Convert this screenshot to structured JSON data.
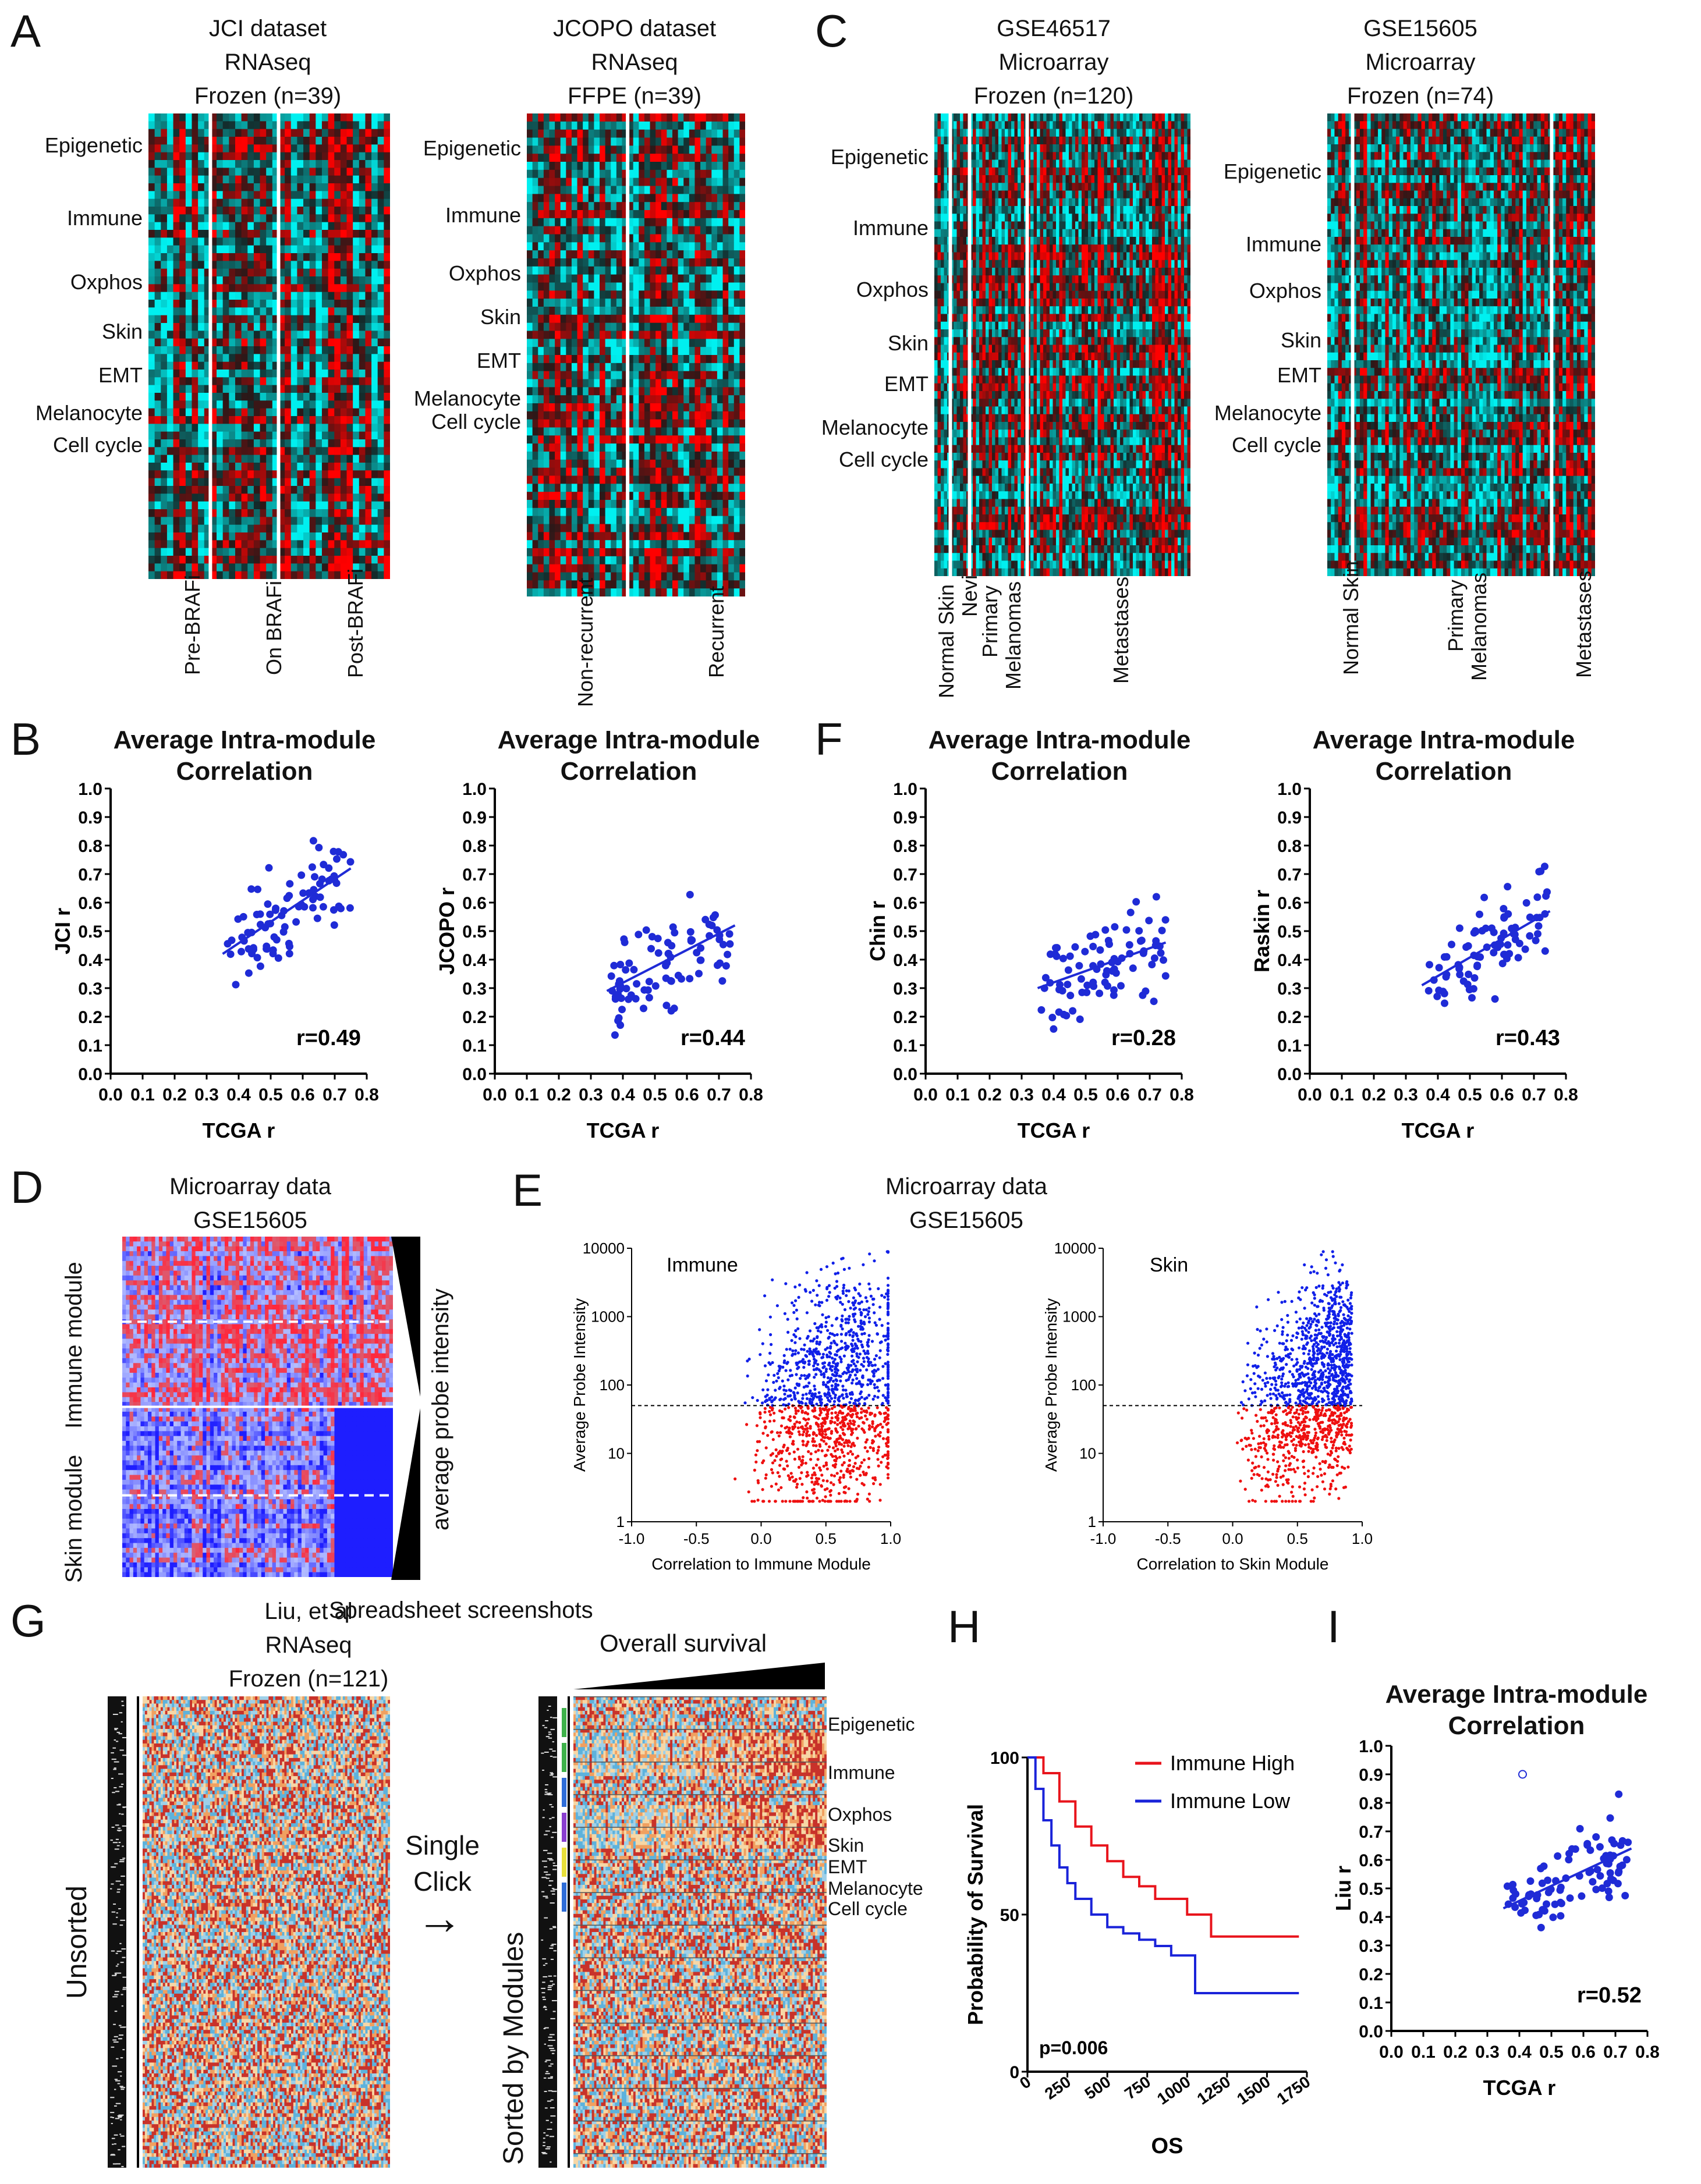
{
  "panels": {
    "A": "A",
    "B": "B",
    "C": "C",
    "D": "D",
    "E": "E",
    "F": "F",
    "G": "G",
    "H": "H",
    "I": "I"
  },
  "panelA": {
    "heatmaps": [
      {
        "title": [
          "JCI dataset",
          "RNAseq",
          "Frozen (n=39)"
        ],
        "modules": [
          "Epigenetic",
          "Immune",
          "Oxphos",
          "Skin",
          "EMT",
          "Melanocyte",
          "Cell cycle"
        ],
        "groups": [
          "Pre-BRAFi",
          "On BRAFi",
          "Post-BRAFi"
        ]
      },
      {
        "title": [
          "JCOPO dataset",
          "RNAseq",
          "FFPE (n=39)"
        ],
        "modules": [
          "Epigenetic",
          "Immune",
          "Oxphos",
          "Skin",
          "EMT",
          "Melanocyte",
          "Cell cycle"
        ],
        "groups": [
          "Non-recurrent",
          "Recurrent"
        ]
      }
    ]
  },
  "panelC": {
    "heatmaps": [
      {
        "title": [
          "GSE46517",
          "Microarray",
          "Frozen (n=120)"
        ],
        "modules": [
          "Epigenetic",
          "Immune",
          "Oxphos",
          "Skin",
          "EMT",
          "Melanocyte",
          "Cell cycle"
        ],
        "groups": [
          "Normal Skin",
          "Nevi",
          "Primary",
          "Melanomas",
          "Metastases"
        ]
      },
      {
        "title": [
          "GSE15605",
          "Microarray",
          "Frozen (n=74)"
        ],
        "modules": [
          "Epigenetic",
          "Immune",
          "Oxphos",
          "Skin",
          "EMT",
          "Melanocyte",
          "Cell cycle"
        ],
        "groups": [
          "Normal Skin",
          "Primary",
          "Melanomas",
          "Metastases"
        ]
      }
    ]
  },
  "panelD": {
    "title": [
      "Microarray data",
      "GSE15605"
    ],
    "modules": [
      "Immune module",
      "Skin module"
    ],
    "side_label": "average probe intensity"
  },
  "panelE": {
    "title": [
      "Microarray data",
      "GSE15605"
    ],
    "ylabel": "Average Probe Intensity",
    "plots": [
      {
        "label": "Immune",
        "xlabel": "Correlation to Immune Module"
      },
      {
        "label": "Skin",
        "xlabel": "Correlation to Skin Module"
      }
    ],
    "yticks": [
      "10000",
      "1000",
      "100",
      "10",
      "1"
    ],
    "xticks": [
      "-1.0",
      "-0.5",
      "0.0",
      "0.5",
      "1.0"
    ],
    "threshold": 50
  },
  "panelG": {
    "title": [
      "Liu, et al",
      "RNAseq",
      "Frozen (n=121)"
    ],
    "screenshots_label": "Spreadsheet screenshots",
    "unsorted": "Unsorted",
    "single_click": [
      "Single",
      "Click"
    ],
    "arrow": "→",
    "sorted": "Sorted by Modules",
    "overall_survival": "Overall survival",
    "modules": [
      "Epigenetic",
      "Immune",
      "Oxphos",
      "Skin",
      "EMT",
      "Melanocyte",
      "Cell cycle"
    ]
  },
  "panelH": {
    "legend": [
      "Immune High",
      "Immune Low"
    ],
    "ylabel": "Probability of Survival",
    "xlabel": "OS",
    "pvalue": "p=0.006",
    "yticks": [
      "100",
      "50",
      "0"
    ],
    "xticks": [
      "0",
      "250",
      "500",
      "750",
      "1000",
      "1250",
      "1500",
      "1750"
    ],
    "colors": {
      "high": "#e8141c",
      "low": "#1a23d9"
    }
  },
  "chart_data": [
    {
      "type": "scatter",
      "title": "Average Intra-module Correlation",
      "xlabel": "TCGA r",
      "ylabel": "JCI r",
      "xlim": [
        0.0,
        0.8
      ],
      "ylim": [
        0.0,
        1.0
      ],
      "annotation": "r=0.49",
      "fit": [
        [
          0.35,
          0.42
        ],
        [
          0.75,
          0.72
        ]
      ],
      "xticks": [
        "0.0",
        "0.1",
        "0.2",
        "0.3",
        "0.4",
        "0.5",
        "0.6",
        "0.7",
        "0.8"
      ],
      "yticks": [
        "0.0",
        "0.1",
        "0.2",
        "0.3",
        "0.4",
        "0.5",
        "0.6",
        "0.7",
        "0.8",
        "0.9",
        "1.0"
      ]
    },
    {
      "type": "scatter",
      "title": "Average Intra-module Correlation",
      "xlabel": "TCGA r",
      "ylabel": "JCOPO r",
      "xlim": [
        0.0,
        0.8
      ],
      "ylim": [
        0.0,
        1.0
      ],
      "annotation": "r=0.44",
      "fit": [
        [
          0.35,
          0.29
        ],
        [
          0.75,
          0.52
        ]
      ],
      "xticks": [
        "0.0",
        "0.1",
        "0.2",
        "0.3",
        "0.4",
        "0.5",
        "0.6",
        "0.7",
        "0.8"
      ],
      "yticks": [
        "0.0",
        "0.1",
        "0.2",
        "0.3",
        "0.4",
        "0.5",
        "0.6",
        "0.7",
        "0.8",
        "0.9",
        "1.0"
      ]
    },
    {
      "type": "scatter",
      "title": "Average Intra-module Correlation",
      "xlabel": "TCGA r",
      "ylabel": "Chin r",
      "xlim": [
        0.0,
        0.8
      ],
      "ylim": [
        0.0,
        1.0
      ],
      "annotation": "r=0.28",
      "fit": [
        [
          0.35,
          0.3
        ],
        [
          0.75,
          0.46
        ]
      ],
      "xticks": [
        "0.0",
        "0.1",
        "0.2",
        "0.3",
        "0.4",
        "0.5",
        "0.6",
        "0.7",
        "0.8"
      ],
      "yticks": [
        "0.0",
        "0.1",
        "0.2",
        "0.3",
        "0.4",
        "0.5",
        "0.6",
        "0.7",
        "0.8",
        "0.9",
        "1.0"
      ]
    },
    {
      "type": "scatter",
      "title": "Average Intra-module Correlation",
      "xlabel": "TCGA r",
      "ylabel": "Raskin r",
      "xlim": [
        0.0,
        0.8
      ],
      "ylim": [
        0.0,
        1.0
      ],
      "annotation": "r=0.43",
      "fit": [
        [
          0.35,
          0.31
        ],
        [
          0.75,
          0.57
        ]
      ],
      "xticks": [
        "0.0",
        "0.1",
        "0.2",
        "0.3",
        "0.4",
        "0.5",
        "0.6",
        "0.7",
        "0.8"
      ],
      "yticks": [
        "0.0",
        "0.1",
        "0.2",
        "0.3",
        "0.4",
        "0.5",
        "0.6",
        "0.7",
        "0.8",
        "0.9",
        "1.0"
      ]
    },
    {
      "type": "scatter",
      "title": "Average Intra-module Correlation",
      "xlabel": "TCGA r",
      "ylabel": "Liu r",
      "xlim": [
        0.0,
        0.8
      ],
      "ylim": [
        0.0,
        1.0
      ],
      "annotation": "r=0.52",
      "fit": [
        [
          0.35,
          0.43
        ],
        [
          0.75,
          0.64
        ]
      ],
      "xticks": [
        "0.0",
        "0.1",
        "0.2",
        "0.3",
        "0.4",
        "0.5",
        "0.6",
        "0.7",
        "0.8"
      ],
      "yticks": [
        "0.0",
        "0.1",
        "0.2",
        "0.3",
        "0.4",
        "0.5",
        "0.6",
        "0.7",
        "0.8",
        "0.9",
        "1.0"
      ]
    },
    {
      "type": "line",
      "title": "",
      "xlabel": "OS",
      "ylabel": "Probability of Survival",
      "xlim": [
        0,
        1750
      ],
      "ylim": [
        0,
        100
      ],
      "series": [
        {
          "name": "Immune High",
          "x": [
            0,
            100,
            200,
            300,
            400,
            500,
            600,
            700,
            800,
            900,
            1000,
            1100,
            1150,
            1700
          ],
          "y": [
            100,
            95,
            86,
            78,
            72,
            67,
            62,
            59,
            55,
            55,
            50,
            50,
            43,
            43
          ]
        },
        {
          "name": "Immune Low",
          "x": [
            0,
            50,
            100,
            150,
            200,
            250,
            300,
            400,
            500,
            600,
            700,
            800,
            900,
            1000,
            1050,
            1700
          ],
          "y": [
            100,
            90,
            80,
            72,
            65,
            60,
            55,
            50,
            46,
            44,
            42,
            40,
            37,
            37,
            25,
            25
          ]
        }
      ],
      "annotation": "p=0.006"
    }
  ]
}
